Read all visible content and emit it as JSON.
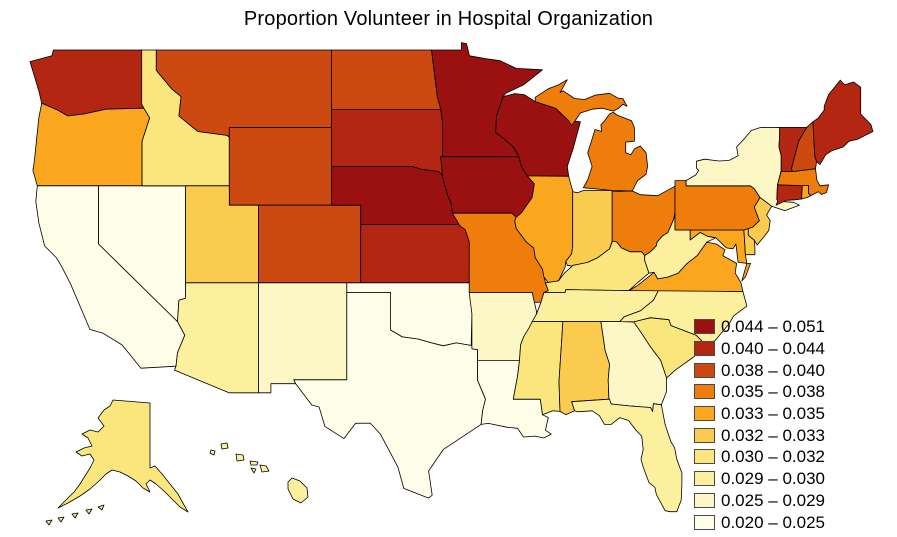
{
  "title": "Proportion Volunteer in Hospital Organization",
  "chart_data": {
    "type": "choropleth",
    "region": "United States (50 states, Albers-style lat/lon plot with Alaska and Hawaii insets)",
    "metric": "Proportion Volunteer in Hospital Organization",
    "legend_position": "right-bottom",
    "legend": [
      {
        "range": "0.044 – 0.051",
        "color": "#9B1111"
      },
      {
        "range": "0.040 – 0.044",
        "color": "#B32612"
      },
      {
        "range": "0.038 – 0.040",
        "color": "#CC4A12"
      },
      {
        "range": "0.035 – 0.038",
        "color": "#EE7D0C"
      },
      {
        "range": "0.033 – 0.035",
        "color": "#FAA61E"
      },
      {
        "range": "0.032 – 0.033",
        "color": "#FBCB4F"
      },
      {
        "range": "0.030 – 0.032",
        "color": "#FBE67E"
      },
      {
        "range": "0.029 – 0.030",
        "color": "#FCF09E"
      },
      {
        "range": "0.025 – 0.029",
        "color": "#FDF7C6"
      },
      {
        "range": "0.020 – 0.025",
        "color": "#FEFDE8"
      }
    ],
    "states": [
      {
        "abbr": "AL",
        "name": "Alabama",
        "bin": 5
      },
      {
        "abbr": "AK",
        "name": "Alaska",
        "bin": 6
      },
      {
        "abbr": "AZ",
        "name": "Arizona",
        "bin": 7
      },
      {
        "abbr": "AR",
        "name": "Arkansas",
        "bin": 8
      },
      {
        "abbr": "CA",
        "name": "California",
        "bin": 9
      },
      {
        "abbr": "CO",
        "name": "Colorado",
        "bin": 2
      },
      {
        "abbr": "CT",
        "name": "Connecticut",
        "bin": 1
      },
      {
        "abbr": "DE",
        "name": "Delaware",
        "bin": 5
      },
      {
        "abbr": "FL",
        "name": "Florida",
        "bin": 7
      },
      {
        "abbr": "GA",
        "name": "Georgia",
        "bin": 8
      },
      {
        "abbr": "HI",
        "name": "Hawaii",
        "bin": 7
      },
      {
        "abbr": "ID",
        "name": "Idaho",
        "bin": 6
      },
      {
        "abbr": "IL",
        "name": "Illinois",
        "bin": 4
      },
      {
        "abbr": "IN",
        "name": "Indiana",
        "bin": 5
      },
      {
        "abbr": "IA",
        "name": "Iowa",
        "bin": 0
      },
      {
        "abbr": "KS",
        "name": "Kansas",
        "bin": 1
      },
      {
        "abbr": "KY",
        "name": "Kentucky",
        "bin": 6
      },
      {
        "abbr": "LA",
        "name": "Louisiana",
        "bin": 9
      },
      {
        "abbr": "ME",
        "name": "Maine",
        "bin": 1
      },
      {
        "abbr": "MD",
        "name": "Maryland",
        "bin": 4
      },
      {
        "abbr": "MA",
        "name": "Massachusetts",
        "bin": 3
      },
      {
        "abbr": "MI",
        "name": "Michigan",
        "bin": 3
      },
      {
        "abbr": "MN",
        "name": "Minnesota",
        "bin": 0
      },
      {
        "abbr": "MS",
        "name": "Mississippi",
        "bin": 6
      },
      {
        "abbr": "MO",
        "name": "Missouri",
        "bin": 3
      },
      {
        "abbr": "MT",
        "name": "Montana",
        "bin": 2
      },
      {
        "abbr": "NE",
        "name": "Nebraska",
        "bin": 0
      },
      {
        "abbr": "NV",
        "name": "Nevada",
        "bin": 9
      },
      {
        "abbr": "NH",
        "name": "New Hampshire",
        "bin": 2
      },
      {
        "abbr": "NJ",
        "name": "New Jersey",
        "bin": 5
      },
      {
        "abbr": "NM",
        "name": "New Mexico",
        "bin": 8
      },
      {
        "abbr": "NY",
        "name": "New York",
        "bin": 8
      },
      {
        "abbr": "NC",
        "name": "North Carolina",
        "bin": 7
      },
      {
        "abbr": "ND",
        "name": "North Dakota",
        "bin": 2
      },
      {
        "abbr": "OH",
        "name": "Ohio",
        "bin": 3
      },
      {
        "abbr": "OK",
        "name": "Oklahoma",
        "bin": 9
      },
      {
        "abbr": "OR",
        "name": "Oregon",
        "bin": 4
      },
      {
        "abbr": "PA",
        "name": "Pennsylvania",
        "bin": 3
      },
      {
        "abbr": "RI",
        "name": "Rhode Island",
        "bin": 4
      },
      {
        "abbr": "SC",
        "name": "South Carolina",
        "bin": 6
      },
      {
        "abbr": "SD",
        "name": "South Dakota",
        "bin": 1
      },
      {
        "abbr": "TN",
        "name": "Tennessee",
        "bin": 7
      },
      {
        "abbr": "TX",
        "name": "Texas",
        "bin": 9
      },
      {
        "abbr": "UT",
        "name": "Utah",
        "bin": 5
      },
      {
        "abbr": "VT",
        "name": "Vermont",
        "bin": 1
      },
      {
        "abbr": "VA",
        "name": "Virginia",
        "bin": 4
      },
      {
        "abbr": "WA",
        "name": "Washington",
        "bin": 1
      },
      {
        "abbr": "WV",
        "name": "West Virginia",
        "bin": 7
      },
      {
        "abbr": "WI",
        "name": "Wisconsin",
        "bin": 0
      },
      {
        "abbr": "WY",
        "name": "Wyoming",
        "bin": 2
      }
    ]
  }
}
